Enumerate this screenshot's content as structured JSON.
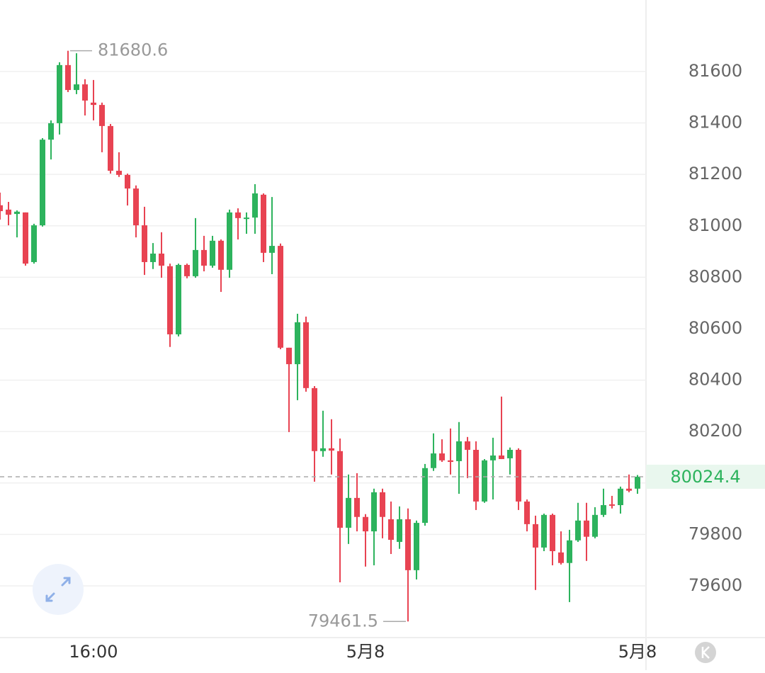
{
  "chart_data": {
    "type": "candlestick",
    "categories": [
      null,
      null,
      null,
      null,
      null,
      null,
      null,
      null,
      null,
      null,
      null,
      "16:00",
      null,
      null,
      null,
      null,
      null,
      null,
      null,
      null,
      null,
      null,
      null,
      null,
      null,
      null,
      null,
      null,
      null,
      null,
      null,
      null,
      null,
      null,
      null,
      null,
      null,
      null,
      null,
      null,
      null,
      null,
      null,
      "5月8",
      null,
      null,
      null,
      null,
      null,
      null,
      null,
      null,
      null,
      null,
      null,
      null,
      null,
      null,
      null,
      null,
      null,
      null,
      null,
      null,
      null,
      null,
      null,
      null,
      null,
      null,
      null,
      null,
      null,
      null,
      null,
      "5月8"
    ],
    "open": [
      81080,
      81063,
      81046,
      81052,
      80859,
      81002,
      81335,
      81399,
      81625,
      81528,
      81550,
      81479,
      81470,
      81388,
      81214,
      81198,
      81145,
      81002,
      80859,
      80892,
      80843,
      80578,
      80848,
      80804,
      80906,
      80845,
      80942,
      80829,
      81052,
      81027,
      81032,
      81121,
      80895,
      80922,
      80526,
      80462,
      80625,
      80369,
      80124,
      80135,
      80124,
      79826,
      79942,
      79868,
      79812,
      79964,
      79859,
      79771,
      79859,
      79661,
      79845,
      80058,
      80115,
      80088,
      80085,
      80162,
      80129,
      79928,
      80088,
      80107,
      80096,
      80129,
      79928,
      79840,
      79749,
      79876,
      79730,
      79689,
      79777,
      79854,
      79791,
      79876,
      79917,
      79914,
      79978,
      79978
    ],
    "high": [
      81129,
      81093,
      81060,
      81052,
      81008,
      81341,
      81410,
      81636,
      81680.6,
      81671,
      81570,
      81567,
      81479,
      81396,
      81286,
      81203,
      81157,
      81074,
      80933,
      80975,
      80853,
      80853,
      80853,
      81030,
      80961,
      80961,
      80947,
      81063,
      81068,
      81052,
      81162,
      81126,
      81112,
      80931,
      80526,
      80658,
      80647,
      80377,
      80281,
      80248,
      80173,
      80033,
      80038,
      79879,
      79978,
      79978,
      79928,
      79909,
      79901,
      79854,
      80074,
      80193,
      80170,
      80212,
      80237,
      80179,
      80162,
      80093,
      80176,
      80336,
      80138,
      80135,
      79936,
      79873,
      79881,
      79881,
      79812,
      79818,
      79923,
      79923,
      79906,
      79978,
      79950,
      79986,
      80033,
      80031
    ],
    "low": [
      81024,
      81002,
      80955,
      80845,
      80853,
      80997,
      81258,
      81355,
      81520,
      81512,
      81429,
      81410,
      81286,
      81203,
      81190,
      81079,
      80955,
      80809,
      80832,
      80798,
      80529,
      80570,
      80796,
      80798,
      80823,
      80837,
      80743,
      80798,
      80947,
      80969,
      80969,
      80859,
      80812,
      80520,
      80198,
      80322,
      80355,
      80005,
      80102,
      80033,
      79614,
      79763,
      79812,
      79675,
      79680,
      79785,
      79724,
      79744,
      79461.5,
      79625,
      79834,
      80047,
      80082,
      80033,
      79958,
      80019,
      79895,
      79923,
      79936,
      80093,
      80033,
      79895,
      79812,
      79584,
      79735,
      79680,
      79683,
      79537,
      79771,
      79697,
      79785,
      79868,
      79901,
      79881,
      79964,
      79958
    ],
    "close": [
      81057,
      81043,
      81055,
      80853,
      81002,
      81335,
      81399,
      81625,
      81528,
      81550,
      81487,
      81470,
      81388,
      81214,
      81198,
      81145,
      81002,
      80859,
      80892,
      80845,
      80578,
      80848,
      80804,
      80906,
      80845,
      80942,
      80829,
      81052,
      81030,
      81032,
      81126,
      80895,
      80922,
      80526,
      80462,
      80625,
      80369,
      80124,
      80135,
      80126,
      79826,
      79942,
      79868,
      79812,
      79964,
      79868,
      79779,
      79859,
      79661,
      79845,
      80058,
      80115,
      80088,
      80082,
      80162,
      80129,
      79928,
      80088,
      80107,
      80093,
      80129,
      79928,
      79840,
      79749,
      79876,
      79735,
      79689,
      79777,
      79854,
      79791,
      79876,
      79914,
      79912,
      79978,
      79970,
      80024.4
    ],
    "up_color": "#2db35d",
    "down_color": "#e84352",
    "ylim": [
      79399,
      81878
    ],
    "yticks": [
      79600,
      79800,
      80000,
      80200,
      80400,
      80600,
      80800,
      81000,
      81200,
      81400,
      81600
    ],
    "grid": true
  }
}
